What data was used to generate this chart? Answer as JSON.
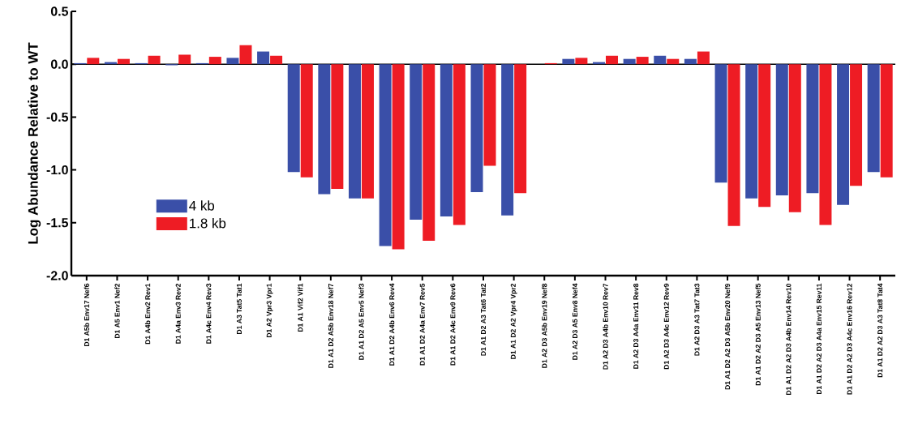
{
  "chart_data": {
    "type": "bar",
    "ylabel": "Log Abundance Relative to WT",
    "categories": [
      "D1 A5b Env17 Nef6",
      "D1 A5 Env1 Nef2",
      "D1 A4b Env2 Rev1",
      "D1 A4a Env3 Rev2",
      "D1 A4c Env4 Rev3",
      "D1 A3 Tat5 Tat1",
      "D1 A2 Vpr3 Vpr1",
      "D1 A1 Vif2 Vif1",
      "D1 A1 D2 A5b Env18 Nef7",
      "D1 A1 D2 A5 Env5 Nef3",
      "D1 A1 D2 A4b Env6 Rev4",
      "D1 A1 D2 A4a Env7 Rev5",
      "D1 A1 D2 A4c Env9 Rev6",
      "D1 A1 D2 A3 Tat6 Tat2",
      "D1 A1 D2 A2 Vpr4 Vpr2",
      "D1 A2 D3 A5b Env19 Nef8",
      "D1 A2 D3 A5 Env8 Nef4",
      "D1 A2 D3 A4b Env10 Rev7",
      "D1 A2 D3 A4a Env11 Rev8",
      "D1 A2 D3 A4c Env12 Rev9",
      "D1 A2 D3 A3 Tat7 Tat3",
      "D1 A1 D2 A2 D3 A5b Env20 Nef9",
      "D1 A1 D2 A2 D3 A5 Env13 Nef5",
      "D1 A1 D2 A2 D3 A4b Env14 Rev10",
      "D1 A1 D2 A2 D3 A4a Env15 Rev11",
      "D1 A1 D2 A2 D3 A4c Env16 Rev12",
      "D1 A1 D2 A2 D3 A3 Tat8 Tat4"
    ],
    "series": [
      {
        "name": "4 kb",
        "color": "#3a4fa8",
        "values": [
          0.01,
          0.02,
          0.01,
          -0.01,
          0.01,
          0.06,
          0.12,
          -1.02,
          -1.23,
          -1.27,
          -1.72,
          -1.47,
          -1.44,
          -1.21,
          -1.43,
          0.0,
          0.05,
          0.02,
          0.05,
          0.08,
          0.05,
          -1.12,
          -1.27,
          -1.24,
          -1.22,
          -1.33,
          -1.02
        ]
      },
      {
        "name": "1.8 kb",
        "color": "#ee1c24",
        "values": [
          0.06,
          0.05,
          0.08,
          0.09,
          0.07,
          0.18,
          0.08,
          -1.07,
          -1.18,
          -1.27,
          -1.75,
          -1.67,
          -1.52,
          -0.96,
          -1.22,
          0.01,
          0.06,
          0.08,
          0.07,
          0.05,
          0.12,
          -1.53,
          -1.35,
          -1.4,
          -1.52,
          -1.15,
          -1.07
        ]
      }
    ],
    "ylim": [
      -2.0,
      0.5
    ],
    "yticks": [
      {
        "value": 0.5,
        "label": "0.5"
      },
      {
        "value": 0.0,
        "label": "0.0"
      },
      {
        "value": -0.5,
        "label": "-0.5"
      },
      {
        "value": -1.0,
        "label": "-1.0"
      },
      {
        "value": -1.5,
        "label": "-1.5"
      },
      {
        "value": -2.0,
        "label": "-2.0"
      }
    ],
    "ref_lines": [
      {
        "axis": "y",
        "value": 0
      }
    ],
    "legend": "left",
    "grid": false
  }
}
